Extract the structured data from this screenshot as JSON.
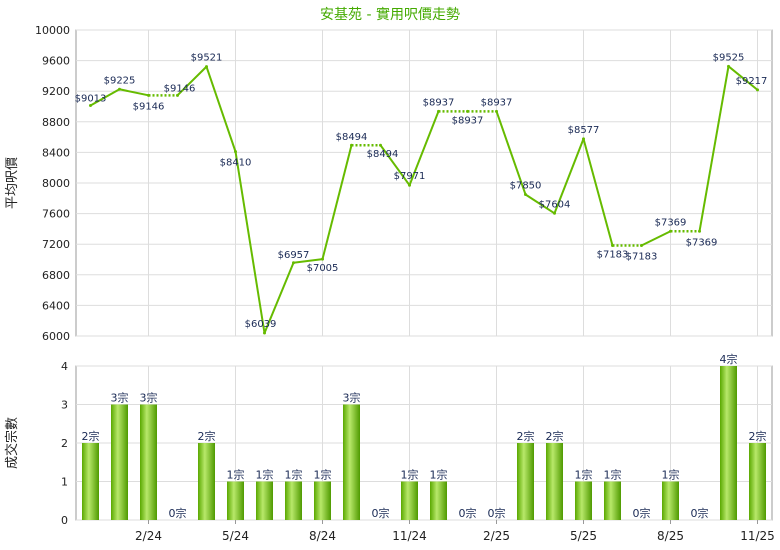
{
  "chart_data": [
    {
      "type": "line",
      "title": "安基苑 - 實用呎價走勢",
      "ylabel": "平均呎價",
      "ylim": [
        6000,
        10000
      ],
      "yticks": [
        6000,
        6400,
        6800,
        7200,
        7600,
        8000,
        8400,
        8800,
        9200,
        9600,
        10000
      ],
      "grid": true,
      "color": "#66bb00",
      "x": [
        "12/23",
        "1/24",
        "2/24",
        "3/24",
        "4/24",
        "5/24",
        "6/24",
        "7/24",
        "8/24",
        "9/24",
        "10/24",
        "11/24",
        "12/24",
        "1/25",
        "2/25",
        "3/25",
        "4/25",
        "5/25",
        "6/25",
        "7/25",
        "8/25",
        "9/25",
        "10/25",
        "11/25"
      ],
      "values": [
        9013,
        9225,
        9146,
        9146,
        9521,
        8410,
        6039,
        6957,
        7005,
        8494,
        8494,
        7971,
        8937,
        8937,
        8937,
        7850,
        7604,
        8577,
        7183,
        7183,
        7369,
        7369,
        9525,
        9217
      ],
      "labels": [
        "$9013",
        "$9225",
        "$9146",
        "$9146",
        "$9521",
        "$8410",
        "$6039",
        "$6957",
        "$7005",
        "$8494",
        "$8494",
        "$7971",
        "$8937",
        "$8937",
        "$8937",
        "$7850",
        "$7604",
        "$8577",
        "$7183",
        "$7183",
        "$7369",
        "$7369",
        "$9525",
        "$9217"
      ],
      "dotted_segments": [
        2,
        9,
        12,
        13,
        18,
        20
      ]
    },
    {
      "type": "bar",
      "ylabel": "成交宗數",
      "ylim": [
        0,
        4
      ],
      "yticks": [
        0,
        1,
        2,
        3,
        4
      ],
      "grid": true,
      "color": "#66bb00",
      "categories": [
        "12/23",
        "1/24",
        "2/24",
        "3/24",
        "4/24",
        "5/24",
        "6/24",
        "7/24",
        "8/24",
        "9/24",
        "10/24",
        "11/24",
        "12/24",
        "1/25",
        "2/25",
        "3/25",
        "4/25",
        "5/25",
        "6/25",
        "7/25",
        "8/25",
        "9/25",
        "10/25",
        "11/25"
      ],
      "values": [
        2,
        3,
        3,
        0,
        2,
        1,
        1,
        1,
        1,
        3,
        0,
        1,
        1,
        0,
        0,
        2,
        2,
        1,
        1,
        0,
        1,
        0,
        4,
        2
      ],
      "labels": [
        "2宗",
        "3宗",
        "3宗",
        "0宗",
        "2宗",
        "1宗",
        "1宗",
        "1宗",
        "1宗",
        "3宗",
        "0宗",
        "1宗",
        "1宗",
        "0宗",
        "0宗",
        "2宗",
        "2宗",
        "1宗",
        "1宗",
        "0宗",
        "1宗",
        "0宗",
        "4宗",
        "2宗"
      ],
      "xtick_labels": [
        "",
        "",
        "2/24",
        "",
        "",
        "5/24",
        "",
        "",
        "8/24",
        "",
        "",
        "11/24",
        "",
        "",
        "2/25",
        "",
        "",
        "5/25",
        "",
        "",
        "8/25",
        "",
        "",
        "11/25"
      ]
    }
  ]
}
